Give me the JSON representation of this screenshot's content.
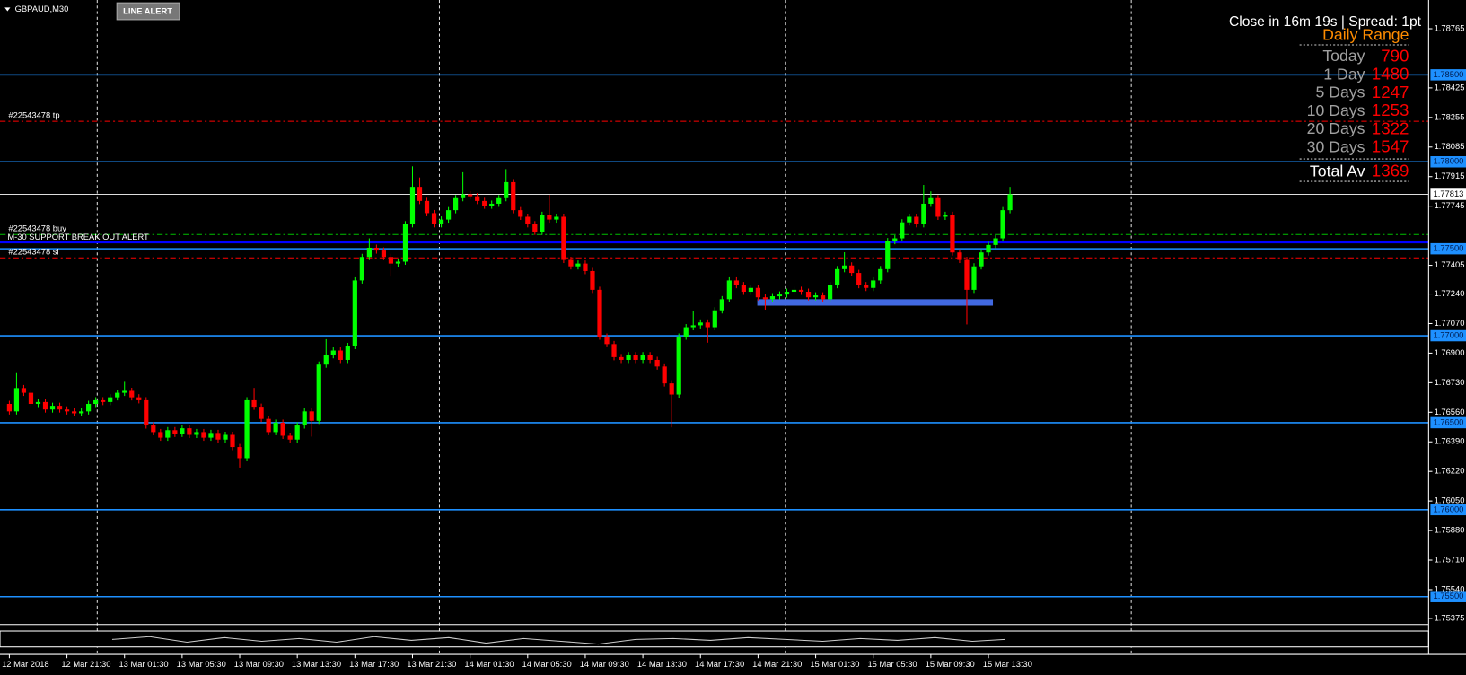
{
  "chart_data": {
    "type": "candlestick",
    "title": "GBPAUD,M30",
    "categories": [
      "12 Mar 2018",
      null,
      null,
      null,
      null,
      null,
      null,
      null,
      "12 Mar 21:30",
      null,
      null,
      null,
      null,
      null,
      null,
      null,
      "13 Mar 01:30",
      null,
      null,
      null,
      null,
      null,
      null,
      null,
      "13 Mar 05:30",
      null,
      null,
      null,
      null,
      null,
      null,
      null,
      "13 Mar 09:30",
      null,
      null,
      null,
      null,
      null,
      null,
      null,
      "13 Mar 13:30",
      null,
      null,
      null,
      null,
      null,
      null,
      null,
      "13 Mar 17:30",
      null,
      null,
      null,
      null,
      null,
      null,
      null,
      "13 Mar 21:30",
      null,
      null,
      null,
      null,
      null,
      null,
      null,
      "14 Mar 01:30",
      null,
      null,
      null,
      null,
      null,
      null,
      null,
      "14 Mar 05:30",
      null,
      null,
      null,
      null,
      null,
      null,
      null,
      "14 Mar 09:30",
      null,
      null,
      null,
      null,
      null,
      null,
      null,
      "14 Mar 13:30",
      null,
      null,
      null,
      null,
      null,
      null,
      null,
      "14 Mar 17:30",
      null,
      null,
      null,
      null,
      null,
      null,
      null,
      "14 Mar 21:30",
      null,
      null,
      null,
      null,
      null,
      null,
      null,
      "15 Mar 01:30",
      null,
      null,
      null,
      null,
      null,
      null,
      null,
      "15 Mar 05:30",
      null,
      null,
      null,
      null,
      null,
      null,
      null,
      "15 Mar 09:30",
      null,
      null,
      null,
      null,
      null,
      null,
      null,
      "15 Mar 13:30",
      null,
      null,
      null
    ],
    "open": [
      1.76608,
      1.76565,
      1.76699,
      1.76672,
      1.76608,
      1.76619,
      1.76576,
      1.76597,
      1.76576,
      1.76565,
      1.76554,
      1.76565,
      1.76608,
      1.76629,
      1.76619,
      1.76646,
      1.76672,
      1.76683,
      1.76646,
      1.76629,
      1.76484,
      1.76446,
      1.76414,
      1.76457,
      1.76436,
      1.76468,
      1.7643,
      1.76446,
      1.76414,
      1.76441,
      1.76403,
      1.7643,
      1.7636,
      1.76296,
      1.76629,
      1.76592,
      1.76522,
      1.76446,
      1.765,
      1.76425,
      1.76403,
      1.76484,
      1.76565,
      1.76511,
      1.76834,
      1.76888,
      1.76915,
      1.76861,
      1.76941,
      1.77318,
      1.77453,
      1.77506,
      1.7749,
      1.77453,
      1.77415,
      1.77426,
      1.77641,
      1.77856,
      1.77775,
      1.77705,
      1.77641,
      1.77668,
      1.77722,
      1.77791,
      1.77813,
      1.77802,
      1.77775,
      1.77748,
      1.77759,
      1.77791,
      1.77883,
      1.77722,
      1.77684,
      1.77641,
      1.77598,
      1.77695,
      1.77668,
      1.77684,
      1.77436,
      1.77399,
      1.77415,
      1.77372,
      1.77264,
      1.76995,
      1.76952,
      1.76877,
      1.76861,
      1.76888,
      1.76861,
      1.76888,
      1.76861,
      1.76823,
      1.76726,
      1.76662,
      1.76995,
      1.77049,
      1.7706,
      1.77076,
      1.77049,
      1.77146,
      1.7721,
      1.77318,
      1.77291,
      1.77253,
      1.77275,
      1.77221,
      1.7721,
      1.77227,
      1.77237,
      1.77253,
      1.77264,
      1.77253,
      1.77221,
      1.77232,
      1.7721,
      1.77291,
      1.77383,
      1.77404,
      1.77361,
      1.77291,
      1.77275,
      1.77318,
      1.77383,
      1.77544,
      1.7756,
      1.77652,
      1.77684,
      1.77641,
      1.77759,
      1.77791,
      1.77684,
      1.77695,
      1.77479,
      1.77436,
      1.77264,
      1.77399,
      1.77479,
      1.77522,
      1.7756,
      1.77722
    ],
    "high": [
      1.76626,
      1.7679,
      1.76717,
      1.7669,
      1.76637,
      1.76637,
      1.76615,
      1.76615,
      1.76594,
      1.76583,
      1.76583,
      1.76626,
      1.76647,
      1.76647,
      1.76664,
      1.7669,
      1.76735,
      1.76701,
      1.76664,
      1.76647,
      1.76502,
      1.76464,
      1.76475,
      1.76475,
      1.76486,
      1.76486,
      1.76464,
      1.76464,
      1.76459,
      1.76459,
      1.76448,
      1.76448,
      1.76378,
      1.76647,
      1.767,
      1.7661,
      1.7654,
      1.76518,
      1.76518,
      1.76443,
      1.76502,
      1.76583,
      1.76583,
      1.76852,
      1.7698,
      1.76933,
      1.76933,
      1.76959,
      1.77336,
      1.77471,
      1.7756,
      1.77524,
      1.77508,
      1.77471,
      1.77444,
      1.77659,
      1.77974,
      1.7791,
      1.77793,
      1.77723,
      1.77686,
      1.7774,
      1.77809,
      1.7794,
      1.77831,
      1.7782,
      1.77793,
      1.77777,
      1.77809,
      1.77958,
      1.77901,
      1.7774,
      1.77702,
      1.77659,
      1.77713,
      1.7781,
      1.77702,
      1.77702,
      1.77454,
      1.77433,
      1.77433,
      1.7739,
      1.77282,
      1.77013,
      1.7697,
      1.76895,
      1.76906,
      1.76906,
      1.76906,
      1.76906,
      1.76879,
      1.76841,
      1.76744,
      1.77013,
      1.77067,
      1.7714,
      1.77094,
      1.77094,
      1.77164,
      1.77228,
      1.77336,
      1.77336,
      1.77309,
      1.77293,
      1.77293,
      1.77239,
      1.77245,
      1.77255,
      1.77271,
      1.77282,
      1.77282,
      1.77271,
      1.7725,
      1.7725,
      1.77309,
      1.77401,
      1.7748,
      1.77422,
      1.77379,
      1.77309,
      1.77336,
      1.77401,
      1.77562,
      1.77578,
      1.7767,
      1.77702,
      1.77702,
      1.77867,
      1.7783,
      1.77809,
      1.77713,
      1.77713,
      1.77497,
      1.77454,
      1.77417,
      1.77497,
      1.7754,
      1.77578,
      1.7774,
      1.77856
    ],
    "low": [
      1.76547,
      1.76547,
      1.76654,
      1.7659,
      1.7659,
      1.76558,
      1.76558,
      1.76558,
      1.76547,
      1.76536,
      1.76536,
      1.76547,
      1.7659,
      1.76601,
      1.76601,
      1.76628,
      1.76654,
      1.76628,
      1.76611,
      1.76466,
      1.76428,
      1.76396,
      1.76396,
      1.76418,
      1.76418,
      1.76412,
      1.76412,
      1.76396,
      1.76396,
      1.76385,
      1.76385,
      1.76342,
      1.76242,
      1.76278,
      1.76574,
      1.76504,
      1.76428,
      1.76428,
      1.76407,
      1.76385,
      1.76385,
      1.76466,
      1.7642,
      1.76493,
      1.76816,
      1.7687,
      1.76843,
      1.76843,
      1.76923,
      1.773,
      1.77435,
      1.77472,
      1.77435,
      1.7734,
      1.77397,
      1.77408,
      1.77623,
      1.77757,
      1.77687,
      1.77623,
      1.77623,
      1.7765,
      1.77704,
      1.77773,
      1.77784,
      1.77757,
      1.7773,
      1.7773,
      1.77741,
      1.77773,
      1.77704,
      1.77666,
      1.77623,
      1.7758,
      1.7758,
      1.7765,
      1.7765,
      1.77418,
      1.77381,
      1.77381,
      1.77354,
      1.77246,
      1.76977,
      1.76934,
      1.76859,
      1.76843,
      1.76843,
      1.76843,
      1.76843,
      1.76843,
      1.76805,
      1.76708,
      1.76473,
      1.76644,
      1.76977,
      1.77031,
      1.77042,
      1.7696,
      1.77031,
      1.77128,
      1.77192,
      1.77273,
      1.77235,
      1.77235,
      1.77203,
      1.7715,
      1.77192,
      1.77209,
      1.77219,
      1.77235,
      1.77235,
      1.77203,
      1.77203,
      1.77192,
      1.77192,
      1.77273,
      1.77365,
      1.77343,
      1.77273,
      1.77257,
      1.77257,
      1.773,
      1.77365,
      1.77526,
      1.77542,
      1.77634,
      1.77623,
      1.77623,
      1.77741,
      1.77666,
      1.77666,
      1.77461,
      1.77418,
      1.77065,
      1.77246,
      1.77381,
      1.77461,
      1.77504,
      1.77542,
      1.77704
    ],
    "close": [
      1.76565,
      1.76699,
      1.76672,
      1.76608,
      1.76619,
      1.76576,
      1.76597,
      1.76576,
      1.76565,
      1.76554,
      1.76565,
      1.76608,
      1.76629,
      1.76619,
      1.76646,
      1.76672,
      1.76683,
      1.76646,
      1.76629,
      1.76484,
      1.76446,
      1.76414,
      1.76457,
      1.76436,
      1.76468,
      1.7643,
      1.76446,
      1.76414,
      1.76441,
      1.76403,
      1.7643,
      1.7636,
      1.76296,
      1.76629,
      1.76592,
      1.76522,
      1.76446,
      1.765,
      1.76425,
      1.76403,
      1.76484,
      1.76565,
      1.76511,
      1.76834,
      1.76888,
      1.76915,
      1.76861,
      1.76941,
      1.77318,
      1.77453,
      1.77506,
      1.7749,
      1.77453,
      1.77415,
      1.77426,
      1.77641,
      1.77856,
      1.77775,
      1.77705,
      1.77641,
      1.77668,
      1.77722,
      1.77791,
      1.77813,
      1.77802,
      1.77775,
      1.77748,
      1.77759,
      1.77791,
      1.77883,
      1.77722,
      1.77684,
      1.77641,
      1.77598,
      1.77695,
      1.77668,
      1.77684,
      1.77436,
      1.77399,
      1.77415,
      1.77372,
      1.77264,
      1.76995,
      1.76952,
      1.76877,
      1.76861,
      1.76888,
      1.76861,
      1.76888,
      1.76861,
      1.76823,
      1.76726,
      1.76662,
      1.76995,
      1.77049,
      1.7706,
      1.77076,
      1.77049,
      1.77146,
      1.7721,
      1.77318,
      1.77291,
      1.77253,
      1.77275,
      1.77221,
      1.7721,
      1.77227,
      1.77237,
      1.77253,
      1.77264,
      1.77253,
      1.77221,
      1.77232,
      1.7721,
      1.77291,
      1.77383,
      1.77404,
      1.77361,
      1.77291,
      1.77275,
      1.77318,
      1.77383,
      1.77544,
      1.7756,
      1.77652,
      1.77684,
      1.77641,
      1.77759,
      1.77791,
      1.77684,
      1.77695,
      1.77479,
      1.77436,
      1.77264,
      1.77399,
      1.77479,
      1.77522,
      1.7756,
      1.77722,
      1.77813
    ],
    "up_color": "#00ff00",
    "down_color": "#ff0000",
    "ylim": [
      1.7534,
      1.7893
    ],
    "yticks": [
      1.78765,
      1.78425,
      1.78255,
      1.78085,
      1.77915,
      1.77745,
      1.77405,
      {
        "value": 1.7724,
        "label": "1.77240"
      },
      {
        "value": 1.7707,
        "label": "1.77070"
      },
      {
        "value": 1.769,
        "label": "1.76900"
      },
      {
        "value": 1.7673,
        "label": "1.76730"
      },
      {
        "value": 1.7656,
        "label": "1.76560"
      },
      {
        "value": 1.7639,
        "label": "1.76390"
      },
      {
        "value": 1.7622,
        "label": "1.76220"
      },
      {
        "value": 1.7605,
        "label": "1.76050"
      },
      {
        "value": 1.7588,
        "label": "1.75880"
      },
      {
        "value": 1.7571,
        "label": "1.75710"
      },
      {
        "value": 1.7554,
        "label": "1.75540"
      },
      1.75375
    ],
    "levels": [
      {
        "value": 1.785,
        "label": "1.78500"
      },
      {
        "value": 1.78,
        "label": "1.78000"
      },
      {
        "value": 1.775,
        "label": "1.77500"
      },
      {
        "value": 1.77,
        "label": "1.77000"
      },
      {
        "value": 1.765,
        "label": "1.76500"
      },
      {
        "value": 1.76,
        "label": "1.76000"
      },
      {
        "value": 1.755,
        "label": "1.75500"
      }
    ],
    "level_color": "#1e90ff",
    "last_price": 1.77813,
    "orders": [
      {
        "name": "#22543478 tp",
        "value": 1.78233,
        "color": "#ff0000"
      },
      {
        "name": "#22543478 buy",
        "value": 1.77582,
        "color": "#00c000"
      },
      {
        "name": "#22543478 sl",
        "value": 1.77448,
        "color": "#ff0000"
      }
    ],
    "alert_line": {
      "name": "M-30 SUPPORT BREAK OUT ALERT",
      "value": 1.77539,
      "color": "#0000ff"
    },
    "zone": {
      "top": 1.7721,
      "bottom": 1.77173,
      "color": "#4169e1"
    }
  },
  "ui": {
    "button": "LINE ALERT"
  },
  "info_panel": {
    "status": "Close in 16m 19s | Spread: 1pt",
    "title": "Daily Range",
    "rows": [
      {
        "label": "Today",
        "value": 790
      },
      {
        "label": "1 Day",
        "value": 1480
      },
      {
        "label": "5 Days",
        "value": 1247
      },
      {
        "label": "10 Days",
        "value": 1253
      },
      {
        "label": "20 Days",
        "value": 1322
      },
      {
        "label": "30 Days",
        "value": 1547
      }
    ],
    "total": {
      "label": "Total Av",
      "value": 1369
    }
  }
}
